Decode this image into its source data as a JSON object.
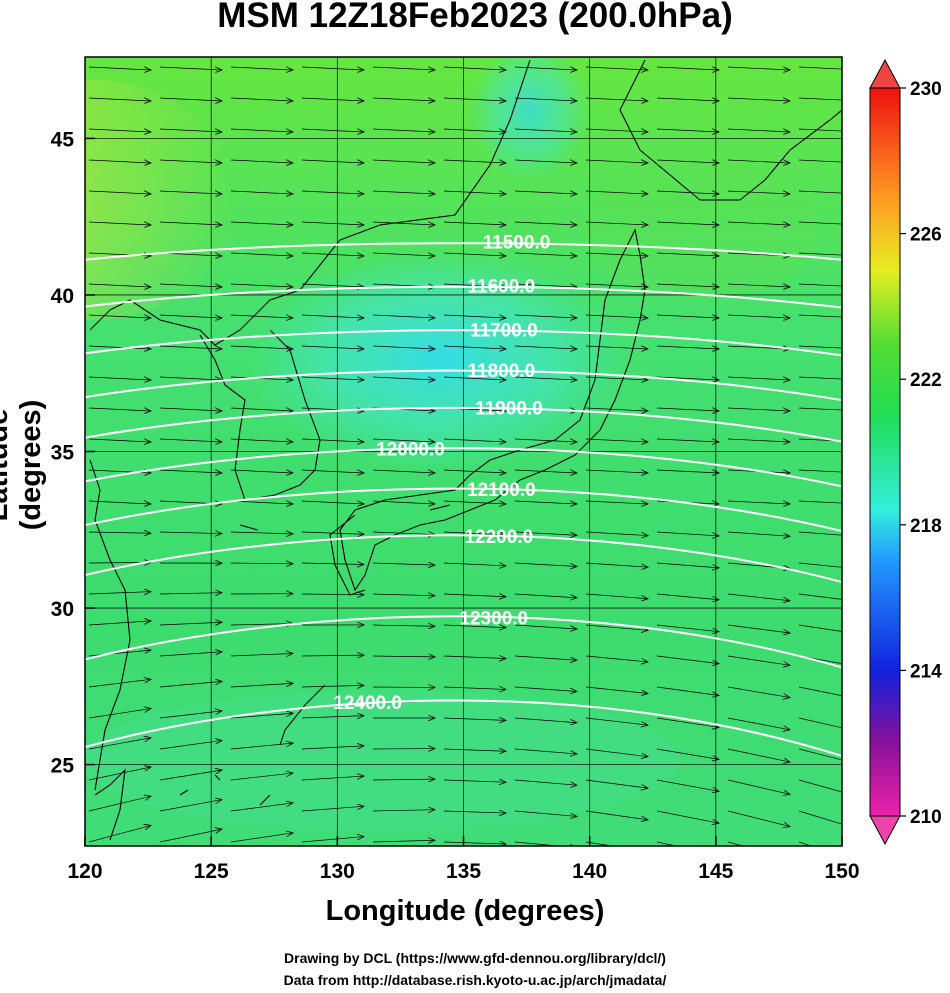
{
  "title": "MSM 12Z18Feb2023 (200.0hPa)",
  "xlabel": "Longitude (degrees)",
  "ylabel": "Latitude  (degrees)",
  "credits": {
    "drawing": "Drawing by DCL (https://www.gfd-dennou.org/library/dcl/)",
    "data": "Data from http://database.rish.kyoto-u.ac.jp/arch/jmadata/"
  },
  "map": {
    "lon_range": [
      120,
      150
    ],
    "lat_range": [
      22.4,
      47.6
    ],
    "lon_ticks": [
      "120",
      "125",
      "130",
      "135",
      "140",
      "145",
      "150"
    ],
    "lat_ticks": [
      "25",
      "30",
      "35",
      "40",
      "45"
    ],
    "grid": true,
    "field": "temperature shading with geopotential height contours and wind vectors"
  },
  "colorbar": {
    "min": 210,
    "max": 230,
    "tick_labels": [
      "230",
      "226",
      "222",
      "218",
      "214",
      "210"
    ],
    "colors": {
      "230": "#ee1111",
      "227": "#ff9922",
      "225": "#e6ee22",
      "223": "#55dd33",
      "221": "#22dd55",
      "218.5": "#33eedd",
      "217": "#2299ff",
      "214": "#1122dd",
      "212": "#881199",
      "210": "#ee22aa"
    }
  },
  "contours": [
    {
      "label": "11500.0",
      "lon": 137.1,
      "lat": 41.7
    },
    {
      "label": "11600.0",
      "lon": 136.5,
      "lat": 40.3
    },
    {
      "label": "11700.0",
      "lon": 136.6,
      "lat": 38.9
    },
    {
      "label": "11800.0",
      "lon": 136.5,
      "lat": 37.6
    },
    {
      "label": "11900.0",
      "lon": 136.8,
      "lat": 36.4
    },
    {
      "label": "12000.0",
      "lon": 132.9,
      "lat": 35.1
    },
    {
      "label": "12100.0",
      "lon": 136.5,
      "lat": 33.8
    },
    {
      "label": "12200.0",
      "lon": 136.4,
      "lat": 32.3
    },
    {
      "label": "12300.0",
      "lon": 136.2,
      "lat": 29.7
    },
    {
      "label": "12400.0",
      "lon": 131.2,
      "lat": 27.0
    }
  ]
}
